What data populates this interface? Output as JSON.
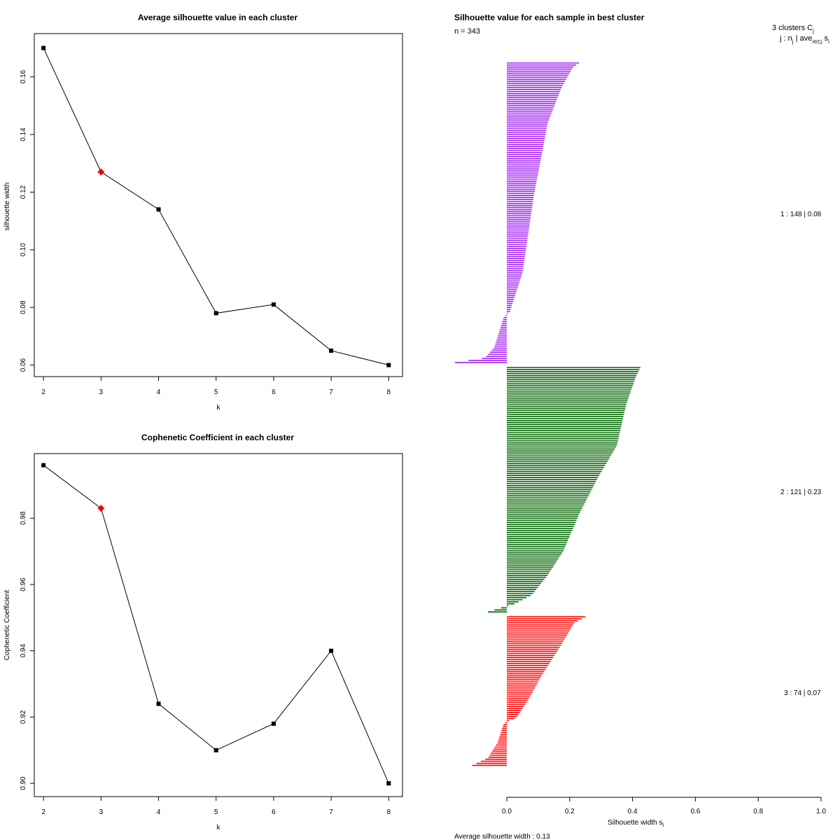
{
  "chart_data": [
    {
      "type": "line",
      "title": "Average silhouette value in each cluster",
      "xlabel": "k",
      "ylabel": "silhouette width",
      "x": [
        2,
        3,
        4,
        5,
        6,
        7,
        8
      ],
      "y": [
        0.17,
        0.127,
        0.114,
        0.078,
        0.081,
        0.065,
        0.06
      ],
      "highlight_x": 3,
      "xlim": [
        1.84,
        8.24
      ],
      "ylim": [
        0.056,
        0.175
      ],
      "x_ticks": [
        2,
        3,
        4,
        5,
        6,
        7,
        8
      ],
      "y_ticks": [
        0.06,
        0.08,
        0.1,
        0.12,
        0.14,
        0.16
      ],
      "y_tick_labels": [
        "0.06",
        "0.08",
        "0.10",
        "0.12",
        "0.14",
        "0.16"
      ],
      "line_color": "#000000",
      "marker_color": "#000000",
      "highlight_color": "#ff0000"
    },
    {
      "type": "line",
      "title": "Cophenetic Coefficient in each cluster",
      "xlabel": "k",
      "ylabel": "Cophenetic Coefficient",
      "x": [
        2,
        3,
        4,
        5,
        6,
        7,
        8
      ],
      "y": [
        0.996,
        0.983,
        0.924,
        0.91,
        0.918,
        0.94,
        0.9
      ],
      "highlight_x": 3,
      "xlim": [
        1.84,
        8.24
      ],
      "ylim": [
        0.896,
        0.9995
      ],
      "x_ticks": [
        2,
        3,
        4,
        5,
        6,
        7,
        8
      ],
      "y_ticks": [
        0.9,
        0.92,
        0.94,
        0.96,
        0.98
      ],
      "y_tick_labels": [
        "0.90",
        "0.92",
        "0.94",
        "0.96",
        "0.98"
      ],
      "line_color": "#000000",
      "marker_color": "#000000",
      "highlight_color": "#ff0000"
    },
    {
      "type": "bar",
      "orientation": "horizontal",
      "title": "Silhouette value for each sample in best cluster",
      "n_label": "n = 343",
      "header_line1": "3  clusters  C",
      "header_sub1": "j",
      "header_line2": "j :  n",
      "header_sub2": "j",
      "header_line2b": " | ave",
      "header_sub3": "i∈Cj",
      "header_line2c": "  s",
      "header_sub4": "i",
      "xlabel": "Silhouette width s",
      "xlabel_sub": "i",
      "xlim": [
        0,
        1
      ],
      "x_ticks": [
        0.0,
        0.2,
        0.4,
        0.6,
        0.8,
        1.0
      ],
      "x_tick_labels": [
        "0.0",
        "0.2",
        "0.4",
        "0.6",
        "0.8",
        "1.0"
      ],
      "average_label": "Average silhouette width :  0.13",
      "clusters": [
        {
          "id": 1,
          "n": 148,
          "avg": 0.08,
          "label": "1 :   148  |  0.08",
          "color": "#a020f0",
          "profile": [
            [
              0,
              0.23
            ],
            [
              0.015,
              0.21
            ],
            [
              0.08,
              0.175
            ],
            [
              0.2,
              0.13
            ],
            [
              0.45,
              0.085
            ],
            [
              0.7,
              0.05
            ],
            [
              0.83,
              0.01
            ],
            [
              0.85,
              -0.01
            ],
            [
              0.95,
              -0.04
            ],
            [
              0.985,
              -0.07
            ],
            [
              1.0,
              -0.165
            ]
          ]
        },
        {
          "id": 2,
          "n": 121,
          "avg": 0.23,
          "label": "2 :   121  |  0.23",
          "color": "#006400",
          "profile": [
            [
              0,
              0.425
            ],
            [
              0.04,
              0.41
            ],
            [
              0.15,
              0.38
            ],
            [
              0.32,
              0.35
            ],
            [
              0.45,
              0.29
            ],
            [
              0.6,
              0.23
            ],
            [
              0.75,
              0.18
            ],
            [
              0.85,
              0.13
            ],
            [
              0.93,
              0.08
            ],
            [
              0.97,
              0.02
            ],
            [
              0.98,
              -0.01
            ],
            [
              1.0,
              -0.06
            ]
          ]
        },
        {
          "id": 3,
          "n": 74,
          "avg": 0.07,
          "label": "3 :   74  |  0.07",
          "color": "#ff0000",
          "profile": [
            [
              0,
              0.25
            ],
            [
              0.04,
              0.215
            ],
            [
              0.2,
              0.17
            ],
            [
              0.4,
              0.11
            ],
            [
              0.55,
              0.07
            ],
            [
              0.68,
              0.03
            ],
            [
              0.7,
              0.005
            ],
            [
              0.72,
              -0.01
            ],
            [
              0.85,
              -0.03
            ],
            [
              0.95,
              -0.06
            ],
            [
              1.0,
              -0.11
            ]
          ]
        }
      ]
    }
  ]
}
